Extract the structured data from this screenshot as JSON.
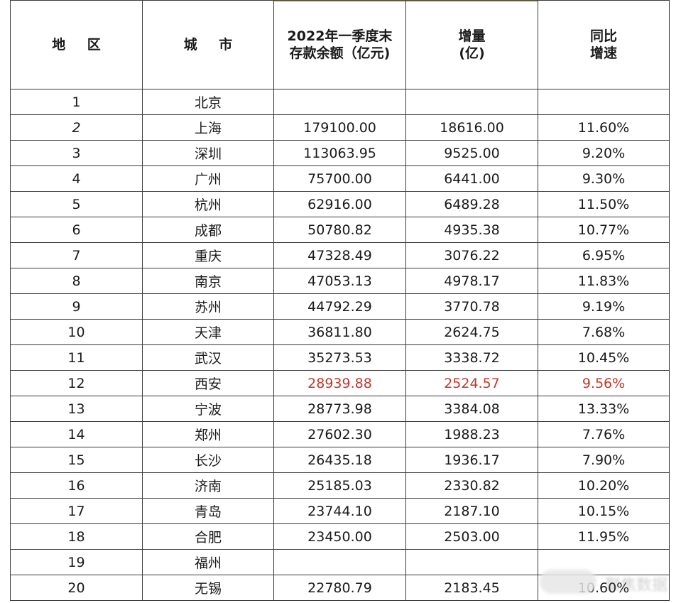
{
  "table": {
    "headers": {
      "rank": "地 区",
      "city": "城 市",
      "deposit_line1": "2022年一季度末",
      "deposit_line2": "存款余额（亿元)",
      "increase_line1": "增量",
      "increase_line2": "(亿)",
      "growth_line1": "同比",
      "growth_line2": "增速"
    },
    "rows": [
      {
        "rank": "1",
        "city": "北京",
        "deposit": "",
        "increase": "",
        "growth": ""
      },
      {
        "rank": "2",
        "city": "上海",
        "deposit": "179100.00",
        "increase": "18616.00",
        "growth": "11.60%"
      },
      {
        "rank": "3",
        "city": "深圳",
        "deposit": "113063.95",
        "increase": "9525.00",
        "growth": "9.20%"
      },
      {
        "rank": "4",
        "city": "广州",
        "deposit": "75700.00",
        "increase": "6441.00",
        "growth": "9.30%"
      },
      {
        "rank": "5",
        "city": "杭州",
        "deposit": "62916.00",
        "increase": "6489.28",
        "growth": "11.50%"
      },
      {
        "rank": "6",
        "city": "成都",
        "deposit": "50780.82",
        "increase": "4935.38",
        "growth": "10.77%"
      },
      {
        "rank": "7",
        "city": "重庆",
        "deposit": "47328.49",
        "increase": "3076.22",
        "growth": "6.95%"
      },
      {
        "rank": "8",
        "city": "南京",
        "deposit": "47053.13",
        "increase": "4978.17",
        "growth": "11.83%"
      },
      {
        "rank": "9",
        "city": "苏州",
        "deposit": "44792.29",
        "increase": "3770.78",
        "growth": "9.19%"
      },
      {
        "rank": "10",
        "city": "天津",
        "deposit": "36811.80",
        "increase": "2624.75",
        "growth": "7.68%"
      },
      {
        "rank": "11",
        "city": "武汉",
        "deposit": "35273.53",
        "increase": "3338.72",
        "growth": "10.45%"
      },
      {
        "rank": "12",
        "city": "西安",
        "deposit": "28939.88",
        "increase": "2524.57",
        "growth": "9.56%",
        "highlight": true
      },
      {
        "rank": "13",
        "city": "宁波",
        "deposit": "28773.98",
        "increase": "3384.08",
        "growth": "13.33%"
      },
      {
        "rank": "14",
        "city": "郑州",
        "deposit": "27602.30",
        "increase": "1988.23",
        "growth": "7.76%"
      },
      {
        "rank": "15",
        "city": "长沙",
        "deposit": "26435.18",
        "increase": "1936.17",
        "growth": "7.90%"
      },
      {
        "rank": "16",
        "city": "济南",
        "deposit": "25185.03",
        "increase": "2330.82",
        "growth": "10.20%"
      },
      {
        "rank": "17",
        "city": "青岛",
        "deposit": "23744.10",
        "increase": "2187.10",
        "growth": "10.15%"
      },
      {
        "rank": "18",
        "city": "合肥",
        "deposit": "23450.00",
        "increase": "2503.00",
        "growth": "11.95%"
      },
      {
        "rank": "19",
        "city": "福州",
        "deposit": "",
        "increase": "",
        "growth": ""
      },
      {
        "rank": "20",
        "city": "无锡",
        "deposit": "22780.79",
        "increase": "2183.45",
        "growth": "10.60%"
      }
    ]
  },
  "watermark": {
    "text": "聚焦数据"
  },
  "colors": {
    "highlight": "#c0392b",
    "border": "#3a3a3a",
    "accent_edge": "#e8d94a"
  }
}
